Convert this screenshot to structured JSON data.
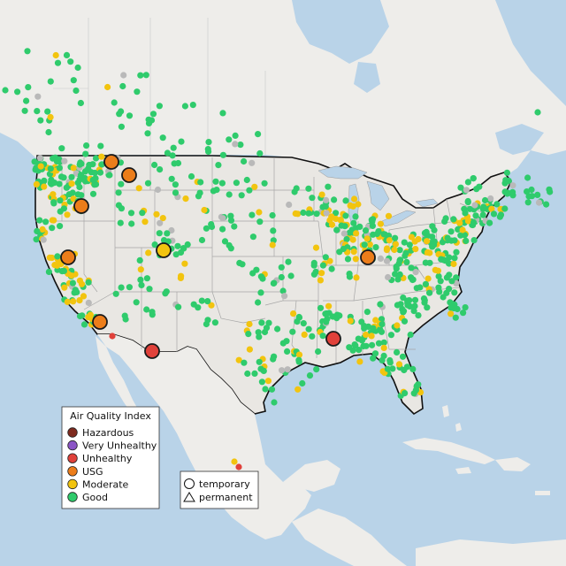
{
  "legend": {
    "title": "Air Quality Index",
    "items": [
      {
        "label": "Hazardous",
        "color": "#7e2a1e"
      },
      {
        "label": "Very Unhealthy",
        "color": "#8b55c6"
      },
      {
        "label": "Unhealthy",
        "color": "#e0413a"
      },
      {
        "label": "USG",
        "color": "#ec7d1a"
      },
      {
        "label": "Moderate",
        "color": "#f2c40f"
      },
      {
        "label": "Good",
        "color": "#2fcb6c"
      }
    ]
  },
  "monitor_legend": {
    "items": [
      {
        "label": "temporary",
        "shape": "circle"
      },
      {
        "label": "permanent",
        "shape": "triangle"
      }
    ]
  },
  "colors": {
    "water": "#b9d3e8",
    "land": "#efeeea",
    "us_land": "#e9e7e3",
    "good": "#2fcb6c",
    "moderate": "#f2c40f",
    "usg": "#ec7d1a",
    "unhealthy": "#e0413a",
    "inactive": "#b9b9b9"
  }
}
